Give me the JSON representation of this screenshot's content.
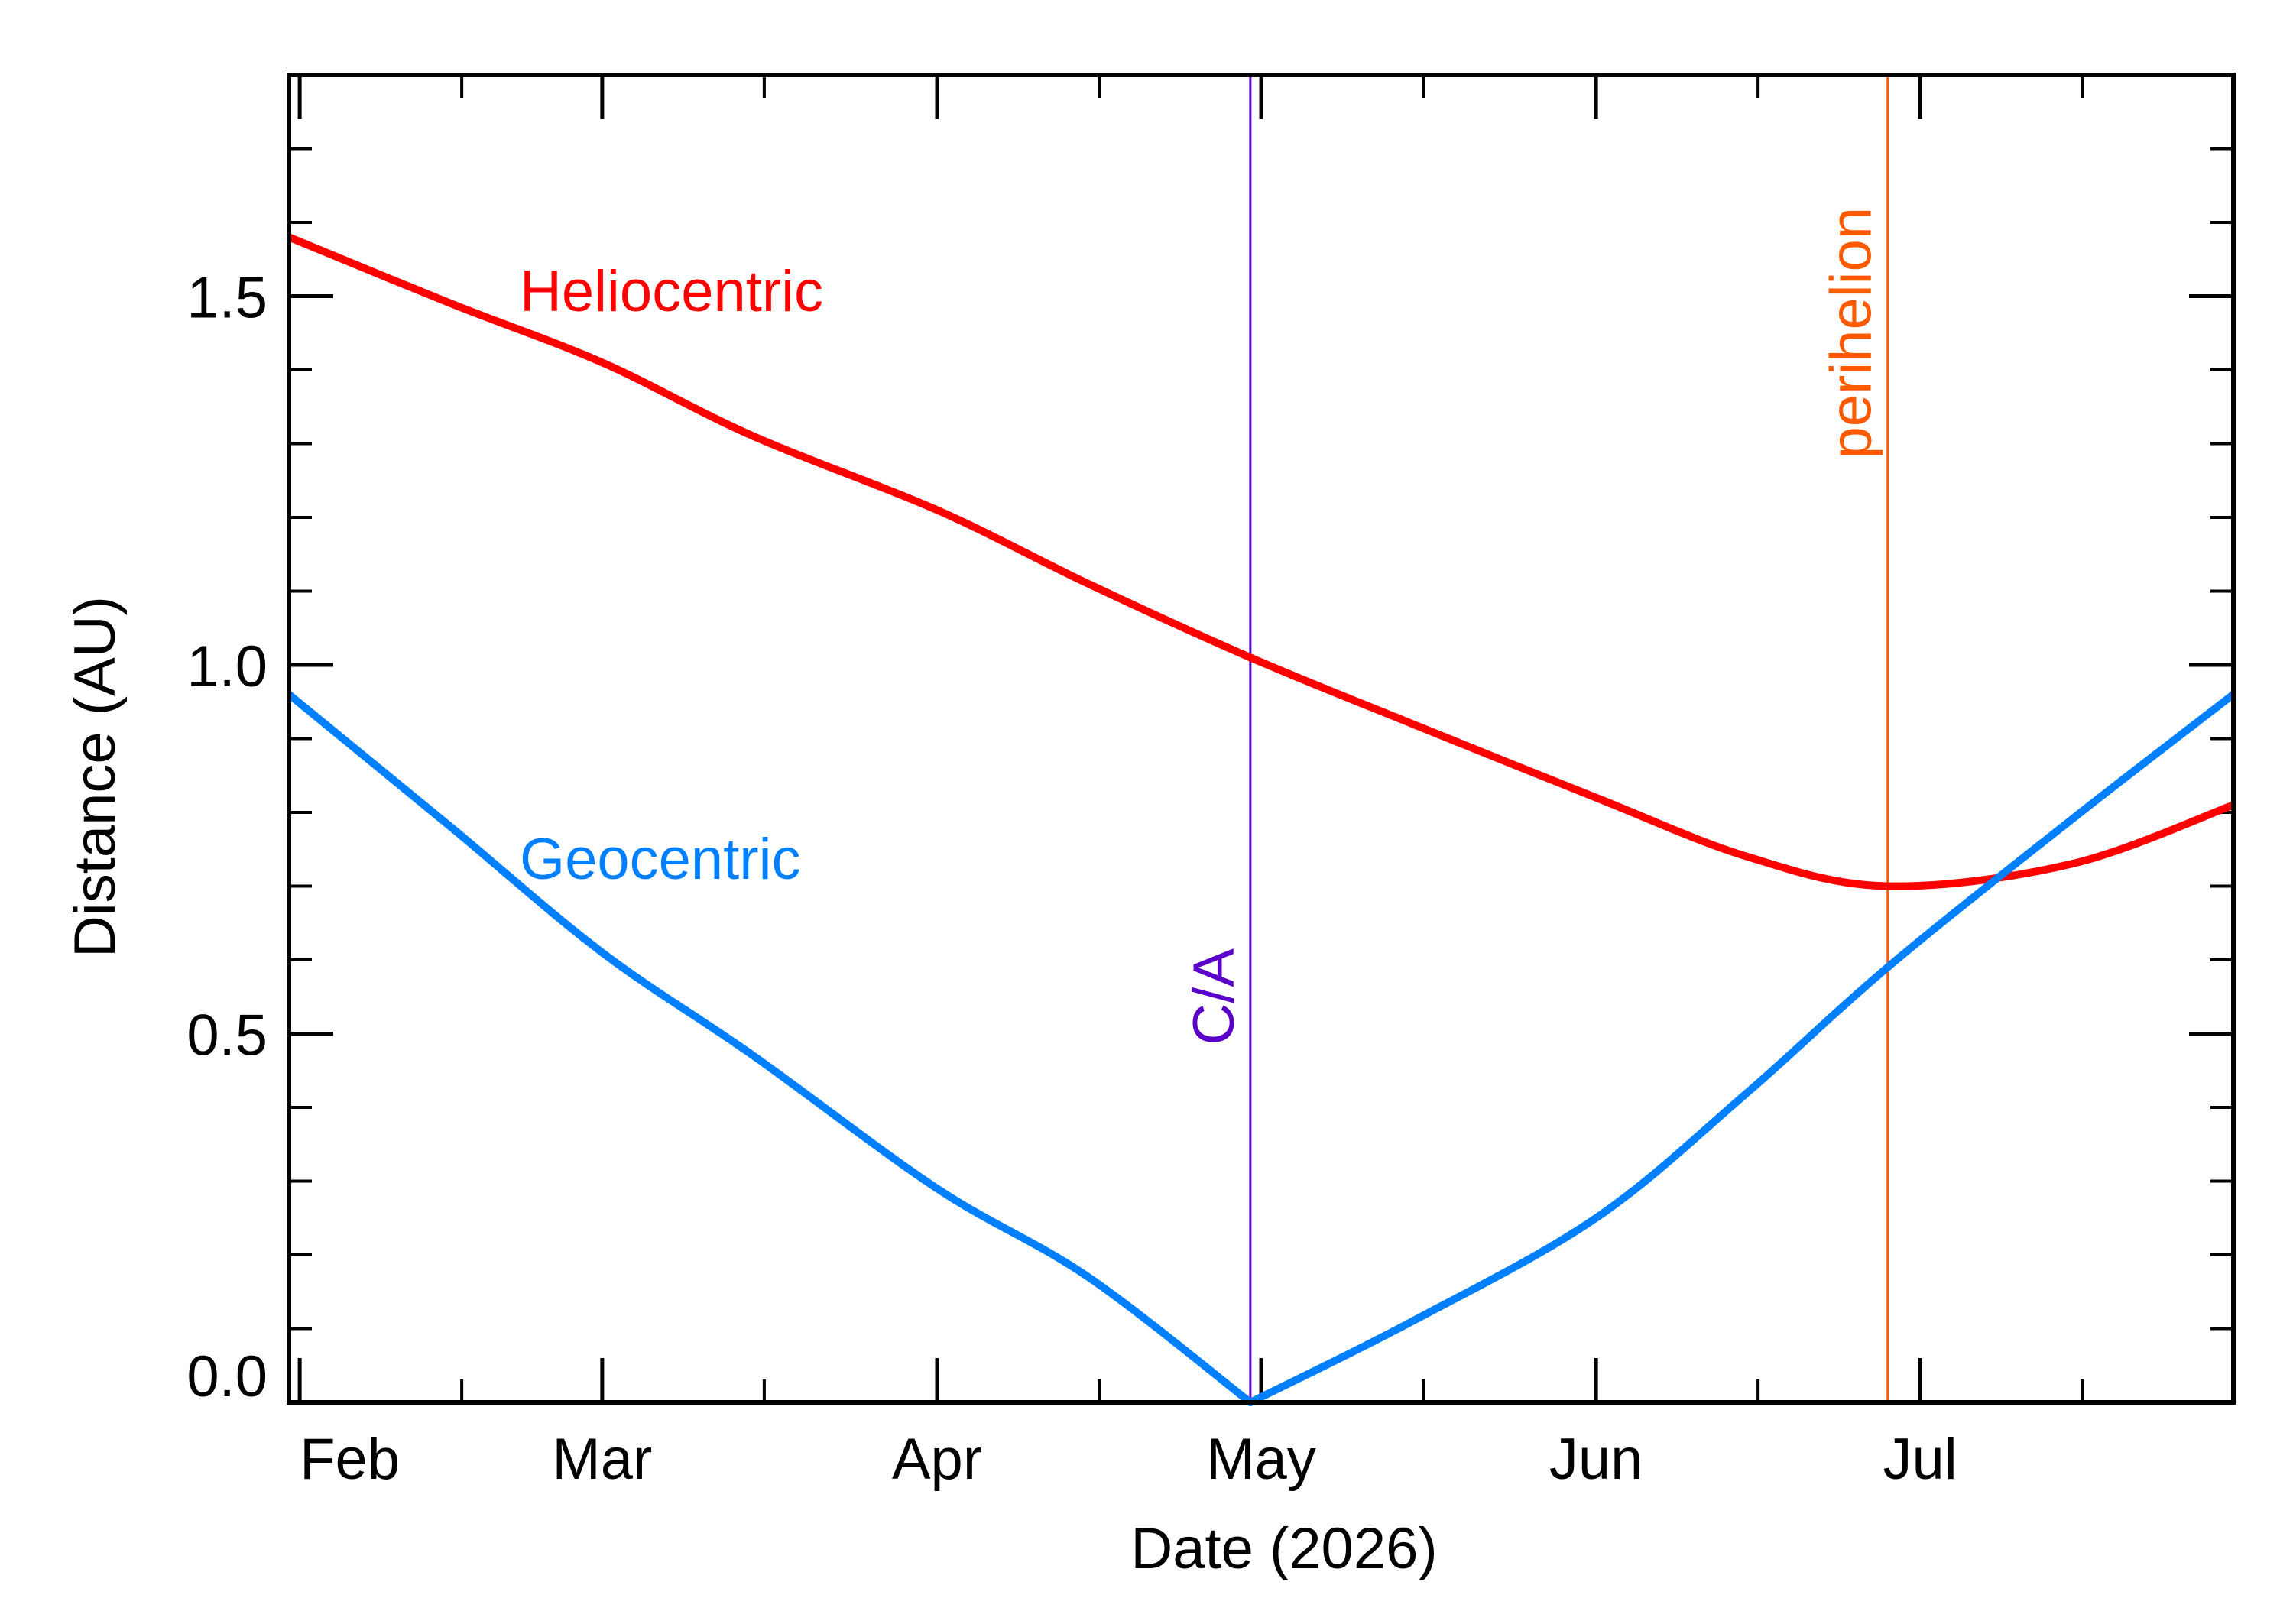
{
  "chart_data": {
    "type": "line",
    "xlabel": "Date (2026)",
    "ylabel": "Distance (AU)",
    "xlim": [
      "2026-01-31",
      "2026-07-30"
    ],
    "ylim": [
      0,
      1.8
    ],
    "month_ticks": [
      {
        "label": "Feb",
        "date": "2026-02-01"
      },
      {
        "label": "Mar",
        "date": "2026-03-01"
      },
      {
        "label": "Apr",
        "date": "2026-04-01"
      },
      {
        "label": "May",
        "date": "2026-05-01"
      },
      {
        "label": "Jun",
        "date": "2026-06-01"
      },
      {
        "label": "Jul",
        "date": "2026-07-01"
      }
    ],
    "y_major_ticks": [
      0,
      0.5,
      1.0,
      1.5
    ],
    "y_tick_labels": [
      "0.0",
      "0.5",
      "1.0",
      "1.5"
    ],
    "y_minor_step": 0.1,
    "series": [
      {
        "name": "Heliocentric",
        "color": "#ff0000",
        "x": [
          "2026-01-31",
          "2026-02-15",
          "2026-03-01",
          "2026-03-15",
          "2026-04-01",
          "2026-04-15",
          "2026-04-30",
          "2026-05-15",
          "2026-06-01",
          "2026-06-15",
          "2026-06-28",
          "2026-07-15",
          "2026-07-30"
        ],
        "y": [
          1.58,
          1.49,
          1.41,
          1.31,
          1.21,
          1.11,
          1.01,
          0.92,
          0.82,
          0.74,
          0.7,
          0.73,
          0.81
        ]
      },
      {
        "name": "Geocentric",
        "color": "#0080ff",
        "x": [
          "2026-01-31",
          "2026-02-15",
          "2026-03-01",
          "2026-03-15",
          "2026-04-01",
          "2026-04-15",
          "2026-04-30",
          "2026-05-15",
          "2026-06-01",
          "2026-06-15",
          "2026-06-28",
          "2026-07-15",
          "2026-07-30"
        ],
        "y": [
          0.96,
          0.78,
          0.61,
          0.47,
          0.29,
          0.17,
          0.0,
          0.11,
          0.25,
          0.42,
          0.59,
          0.79,
          0.96
        ]
      }
    ],
    "annotations": [
      {
        "label": "C/A",
        "date": "2026-04-30",
        "color": "#5a00c8"
      },
      {
        "label": "perihelion",
        "date": "2026-06-28",
        "color": "#ff5a00"
      }
    ]
  }
}
